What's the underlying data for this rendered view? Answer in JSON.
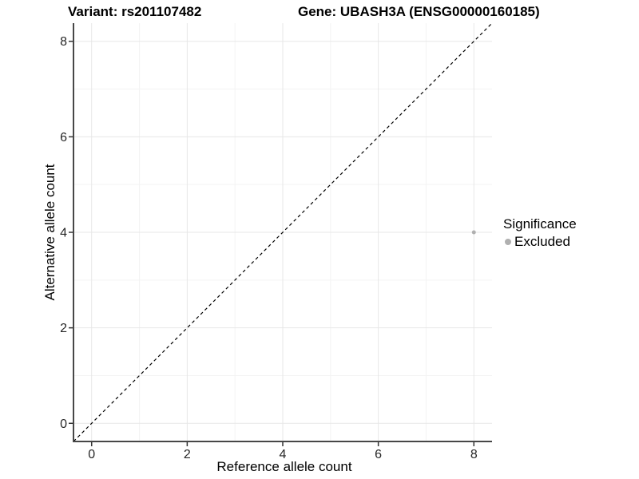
{
  "titles": {
    "variant": "Variant: rs201107482",
    "gene": "Gene: UBASH3A (ENSG00000160185)"
  },
  "chart_data": {
    "type": "scatter",
    "xlabel": "Reference allele count",
    "ylabel": "Alternative allele count",
    "xlim": [
      -0.38,
      8.38
    ],
    "ylim": [
      -0.38,
      8.38
    ],
    "x_ticks": [
      0,
      2,
      4,
      6,
      8
    ],
    "y_ticks": [
      0,
      2,
      4,
      6,
      8
    ],
    "x_minor_ticks": [
      1,
      3,
      5,
      7
    ],
    "y_minor_ticks": [
      1,
      3,
      5,
      7
    ],
    "grid": true,
    "identity_line": {
      "style": "dashed",
      "equation": "y = x"
    },
    "series": [
      {
        "name": "Excluded",
        "color": "#b0b0b0",
        "points": [
          {
            "x": 8,
            "y": 4
          }
        ]
      }
    ],
    "legend": {
      "title": "Significance",
      "position": "right",
      "entries": [
        {
          "label": "Excluded",
          "color": "#b0b0b0"
        }
      ]
    }
  },
  "colors": {
    "background": "#ffffff",
    "grid_major": "#e7e7e7",
    "grid_minor": "#f3f3f3",
    "axis_line": "#474747",
    "tick_mark": "#333333",
    "tick_label": "#262626",
    "axis_title": "#000000",
    "reference_line": "#000000",
    "point": "#b0b0b0"
  }
}
